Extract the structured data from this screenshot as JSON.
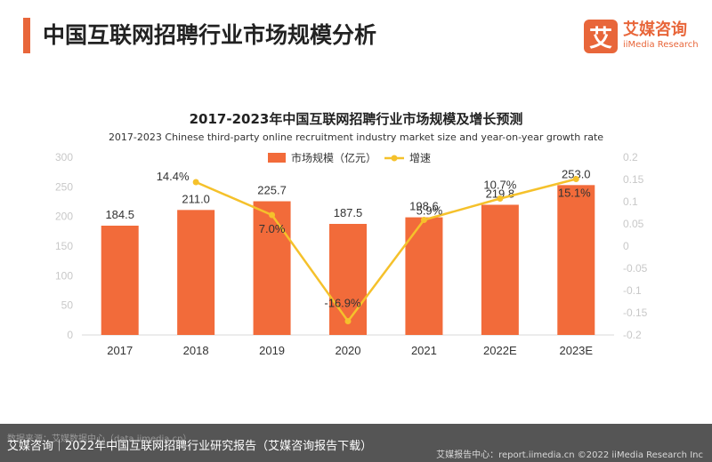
{
  "header": {
    "title": "中国互联网招聘行业市场规模分析",
    "logo_mark": "艾",
    "logo_cn": "艾媒咨询",
    "logo_en": "iiMedia Research"
  },
  "footer": {
    "source": "数据来源：艾媒数据中心（data.iimedia.cn）",
    "caption": "艾媒咨询｜2022年中国互联网招聘行业研究报告（艾媒咨询报告下载）",
    "right": "艾媒报告中心：report.iimedia.cn    ©2022  iiMedia Research  Inc"
  },
  "chart_data": {
    "type": "bar",
    "title": "2017-2023年中国互联网招聘行业市场规模及增长预测",
    "subtitle": "2017-2023 Chinese third-party online recruitment industry market size and year-on-year growth rate",
    "categories": [
      "2017",
      "2018",
      "2019",
      "2020",
      "2021",
      "2022E",
      "2023E"
    ],
    "series": [
      {
        "name": "市场规模（亿元）",
        "type": "bar",
        "axis": "left",
        "values": [
          184.5,
          211.0,
          225.7,
          187.5,
          198.6,
          219.8,
          253.0
        ],
        "labels": [
          "184.5",
          "211.0",
          "225.7",
          "187.5",
          "198.6",
          "219.8",
          "253.0"
        ]
      },
      {
        "name": "增速",
        "type": "line",
        "axis": "right",
        "values": [
          null,
          0.144,
          0.07,
          -0.169,
          0.059,
          0.107,
          0.151
        ],
        "labels": [
          null,
          "14.4%",
          "7.0%",
          "-16.9%",
          "5.9%",
          "10.7%",
          "15.1%"
        ]
      }
    ],
    "y_left": {
      "ylim": [
        0,
        300
      ],
      "ticks": [
        "0",
        "50",
        "100",
        "150",
        "200",
        "250",
        "300"
      ]
    },
    "y_right": {
      "ylim": [
        -0.2,
        0.2
      ],
      "ticks": [
        "-0.2",
        "-0.15",
        "-0.1",
        "-0.05",
        "0",
        "0.05",
        "0.1",
        "0.15",
        "0.2"
      ]
    },
    "legend_position": "top-center",
    "grid": false,
    "colors": {
      "bar": "#f26b3a",
      "line": "#f5c12b",
      "axis_text": "#c8c8c8",
      "label": "#333333"
    }
  }
}
